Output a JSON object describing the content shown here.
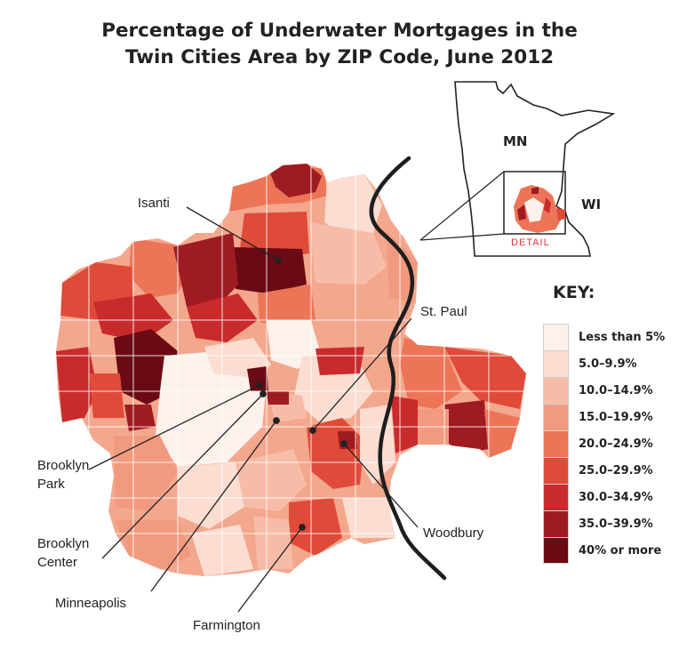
{
  "title": {
    "line1": "Percentage of Underwater Mortgages in the",
    "line2": "Twin Cities Area by ZIP Code, June 2012"
  },
  "inset": {
    "state_mn": "MN",
    "state_wi": "WI",
    "detail": "DETAIL"
  },
  "key": {
    "title": "KEY:",
    "items": [
      {
        "label": "Less than 5%",
        "color": "#fdf1ec"
      },
      {
        "label": "5.0–9.9%",
        "color": "#fbddd2"
      },
      {
        "label": "10.0–14.9%",
        "color": "#f7bca8"
      },
      {
        "label": "15.0–19.9%",
        "color": "#f29a80"
      },
      {
        "label": "20.0–24.9%",
        "color": "#ec7558"
      },
      {
        "label": "25.0–29.9%",
        "color": "#e04a38"
      },
      {
        "label": "30.0–34.9%",
        "color": "#c92b2c"
      },
      {
        "label": "35.0–39.9%",
        "color": "#9f1b22"
      },
      {
        "label": "40% or more",
        "color": "#6a0a14"
      }
    ]
  },
  "places": [
    {
      "label": "Isanti",
      "band": "40% or more"
    },
    {
      "label": "St. Paul",
      "band": ""
    },
    {
      "label": "Brooklyn",
      "label2": "Park",
      "band": "40% or more"
    },
    {
      "label": "Brooklyn",
      "label2": "Center",
      "band": "35.0–39.9%"
    },
    {
      "label": "Minneapolis",
      "band": ""
    },
    {
      "label": "Farmington",
      "band": "30.0–34.9%"
    },
    {
      "label": "Woodbury",
      "band": "35.0–39.9%"
    }
  ]
}
